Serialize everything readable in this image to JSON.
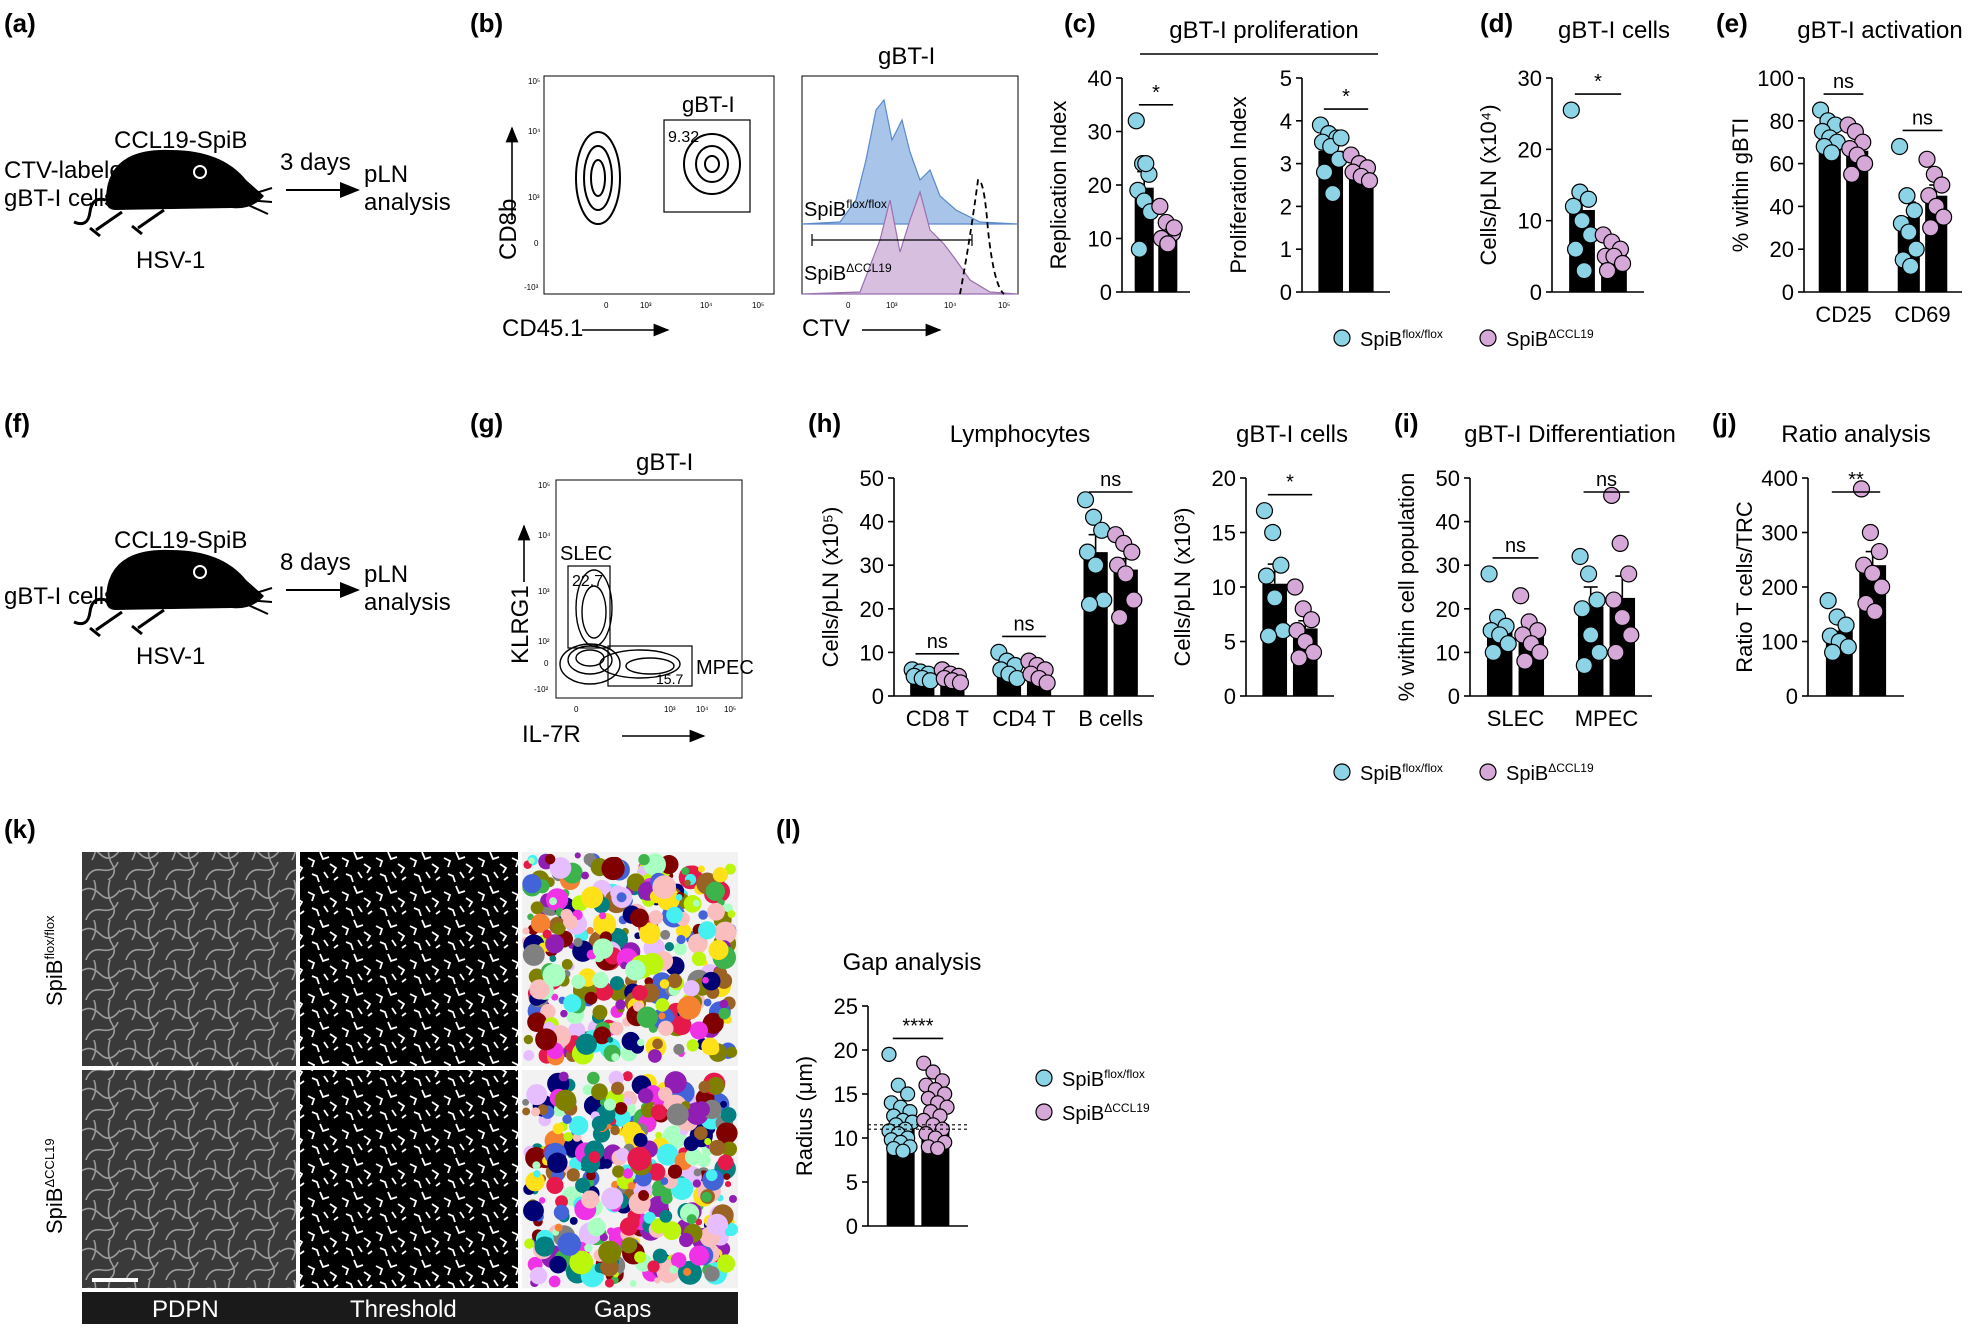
{
  "colors": {
    "flox": "#8dd3e6",
    "ko": "#d6a8d8",
    "bar": "#000000",
    "hist_flox": "#a8c4e8",
    "hist_ko": "#d7bfe0",
    "panel_label_bg": "#1a1a1a"
  },
  "legend": {
    "flox_base": "SpiB",
    "flox_sup": "flox/flox",
    "ko_base": "SpiB",
    "ko_sup": "ΔCCL19"
  },
  "panel_labels": [
    "(a)",
    "(b)",
    "(c)",
    "(d)",
    "(e)",
    "(f)",
    "(g)",
    "(h)",
    "(i)",
    "(j)",
    "(k)",
    "(l)"
  ],
  "schematic_a": {
    "mouse": "CCL19-SpiB",
    "cells_line1": "CTV-labeled",
    "cells_line2": "gBT-I cells",
    "virus": "HSV-1",
    "time": "3 days",
    "out_line1": "pLN",
    "out_line2": "analysis"
  },
  "schematic_f": {
    "mouse": "CCL19-SpiB",
    "cells": "gBT-I cells",
    "virus": "HSV-1",
    "time": "8 days",
    "out_line1": "pLN",
    "out_line2": "analysis"
  },
  "flow_b": {
    "ylabel": "CD8b",
    "xlabel": "CD45.1",
    "gate": "gBT-I",
    "gate_value": "9.32",
    "hist_title": "gBT-I",
    "hist_xlabel": "CTV",
    "yticks": [
      "10⁵",
      "10⁴",
      "10³",
      "0",
      "-10³"
    ],
    "xticks": [
      "0",
      "10³",
      "10⁴",
      "10⁵"
    ],
    "hist_xticks": [
      "0",
      "10³",
      "10⁴",
      "10⁵"
    ]
  },
  "flow_g": {
    "title": "gBT-I",
    "ylabel": "KLRG1",
    "xlabel": "IL-7R",
    "gate1": "SLEC",
    "gate1_value": "22.7",
    "gate2": "MPEC",
    "gate2_value": "15.7",
    "yticks": [
      "10⁵",
      "10⁴",
      "10³",
      "10²",
      "0",
      "-10²"
    ],
    "xticks": [
      "0",
      "10³",
      "10⁴",
      "10⁵"
    ]
  },
  "micro_k": {
    "col1": "PDPN",
    "col2": "Threshold",
    "col3": "Gaps",
    "row1_base": "SpiB",
    "row1_sup": "flox/flox",
    "row2_base": "SpiB",
    "row2_sup": "ΔCCL19"
  },
  "chart_data": [
    {
      "id": "c1",
      "panel": "(c)",
      "type": "bar",
      "title": "gBT-I proliferation",
      "xlabel": "",
      "ylabel": "Replication Index",
      "ylim": [
        0,
        40
      ],
      "yticks": [
        0,
        10,
        20,
        30,
        40
      ],
      "categories": [
        ""
      ],
      "series": [
        {
          "name": "SpiBflox/flox",
          "values": [
            19.5
          ],
          "sem": [
            3
          ],
          "points": [
            32,
            24,
            22,
            19,
            17,
            15,
            8,
            24
          ]
        },
        {
          "name": "SpiBΔCCL19",
          "values": [
            11
          ],
          "sem": [
            1.5
          ],
          "points": [
            16,
            13,
            11,
            10,
            9,
            12
          ]
        }
      ],
      "sig": [
        {
          "label": "*"
        }
      ]
    },
    {
      "id": "c2",
      "panel": "(c)",
      "type": "bar",
      "xlabel": "",
      "ylabel": "Proliferation Index",
      "ylim": [
        0,
        5
      ],
      "yticks": [
        0,
        1,
        2,
        3,
        4,
        5
      ],
      "categories": [
        ""
      ],
      "series": [
        {
          "name": "SpiBflox/flox",
          "values": [
            3.3
          ],
          "sem": [
            0.2
          ],
          "points": [
            3.9,
            3.7,
            3.6,
            3.5,
            3.4,
            3.1,
            2.8,
            2.3,
            3.6
          ]
        },
        {
          "name": "SpiBΔCCL19",
          "values": [
            2.8
          ],
          "sem": [
            0.1
          ],
          "points": [
            3.2,
            3.0,
            2.9,
            2.8,
            2.7,
            2.6
          ]
        }
      ],
      "sig": [
        {
          "label": "*"
        }
      ]
    },
    {
      "id": "d",
      "panel": "(d)",
      "type": "bar",
      "title": "gBT-I cells",
      "xlabel": "",
      "ylabel": "Cells/pLN (x10⁴)",
      "ylim": [
        0,
        30
      ],
      "yticks": [
        0,
        10,
        20,
        30
      ],
      "categories": [
        ""
      ],
      "series": [
        {
          "name": "SpiBflox/flox",
          "values": [
            11.5
          ],
          "sem": [
            2.2
          ],
          "points": [
            25.5,
            14,
            13,
            12,
            10,
            8,
            6,
            3
          ]
        },
        {
          "name": "SpiBΔCCL19",
          "values": [
            5.5
          ],
          "sem": [
            0.8
          ],
          "points": [
            8,
            7,
            6,
            5,
            5,
            4,
            3
          ]
        }
      ],
      "sig": [
        {
          "label": "*"
        }
      ]
    },
    {
      "id": "e",
      "panel": "(e)",
      "type": "bar",
      "title": "gBT-I activation",
      "xlabel": "",
      "ylabel": "% within gBTI",
      "ylim": [
        0,
        100
      ],
      "yticks": [
        0,
        20,
        40,
        60,
        80,
        100
      ],
      "categories": [
        "CD25",
        "CD69"
      ],
      "series": [
        {
          "name": "SpiBflox/flox",
          "values": [
            73,
            35
          ],
          "sem": [
            3,
            7
          ],
          "points": [
            [
              85,
              80,
              78,
              75,
              72,
              70,
              68,
              65
            ],
            [
              68,
              45,
              38,
              32,
              28,
              20,
              15,
              12
            ]
          ]
        },
        {
          "name": "SpiBΔCCL19",
          "values": [
            66,
            45
          ],
          "sem": [
            4,
            5
          ],
          "points": [
            [
              78,
              75,
              70,
              67,
              64,
              60,
              55
            ],
            [
              62,
              55,
              50,
              45,
              40,
              35,
              30
            ]
          ]
        }
      ],
      "sig": [
        {
          "label": "ns"
        },
        {
          "label": "ns"
        }
      ]
    },
    {
      "id": "h1",
      "panel": "(h)",
      "type": "bar",
      "title": "Lymphocytes",
      "xlabel": "",
      "ylabel": "Cells/pLN (x10⁵)",
      "ylim": [
        0,
        50
      ],
      "yticks": [
        0,
        10,
        20,
        30,
        40,
        50
      ],
      "categories": [
        "CD8 T",
        "CD4 T",
        "B cells"
      ],
      "series": [
        {
          "name": "SpiBflox/flox",
          "values": [
            4.5,
            6.5,
            33
          ],
          "sem": [
            0.5,
            1,
            4
          ],
          "points": [
            [
              6,
              5.5,
              5,
              4.5,
              4,
              3.5
            ],
            [
              10,
              8,
              7,
              6,
              5,
              4
            ],
            [
              45,
              41,
              38,
              33,
              30,
              22,
              21
            ]
          ]
        },
        {
          "name": "SpiBΔCCL19",
          "values": [
            4,
            5,
            29
          ],
          "sem": [
            0.4,
            0.6,
            2.5
          ],
          "points": [
            [
              6,
              5,
              4.5,
              4,
              3.5,
              3
            ],
            [
              8,
              7,
              6,
              5,
              4,
              3
            ],
            [
              37,
              35,
              33,
              30,
              28,
              22,
              18
            ]
          ]
        }
      ],
      "sig": [
        {
          "label": "ns"
        },
        {
          "label": "ns"
        },
        {
          "label": "ns"
        }
      ]
    },
    {
      "id": "h2",
      "panel": "(h)",
      "type": "bar",
      "title": "gBT-I cells",
      "xlabel": "",
      "ylabel": "Cells/pLN (x10³)",
      "ylim": [
        0,
        20
      ],
      "yticks": [
        0,
        5,
        10,
        15,
        20
      ],
      "categories": [
        ""
      ],
      "series": [
        {
          "name": "SpiBflox/flox",
          "values": [
            10.3
          ],
          "sem": [
            1.8
          ],
          "points": [
            17,
            15,
            12,
            11,
            9,
            6,
            5.5
          ]
        },
        {
          "name": "SpiBΔCCL19",
          "values": [
            6.2
          ],
          "sem": [
            0.7
          ],
          "points": [
            10,
            8,
            7,
            6,
            5,
            4,
            3.5
          ]
        }
      ],
      "sig": [
        {
          "label": "*"
        }
      ]
    },
    {
      "id": "i",
      "panel": "(i)",
      "type": "bar",
      "title": "gBT-I Differentiation",
      "xlabel": "",
      "ylabel": "% within cell population",
      "ylim": [
        0,
        50
      ],
      "yticks": [
        0,
        10,
        20,
        30,
        40,
        50
      ],
      "categories": [
        "SLEC",
        "MPEC"
      ],
      "series": [
        {
          "name": "SpiBflox/flox",
          "values": [
            15.5,
            20.5
          ],
          "sem": [
            2,
            4.5
          ],
          "points": [
            [
              28,
              18,
              16,
              15,
              14,
              12,
              10
            ],
            [
              32,
              28,
              22,
              20,
              14,
              10,
              7
            ]
          ]
        },
        {
          "name": "SpiBΔCCL19",
          "values": [
            14,
            22.5
          ],
          "sem": [
            1.5,
            5
          ],
          "points": [
            [
              23,
              17,
              15,
              14,
              12,
              10,
              8
            ],
            [
              46,
              35,
              28,
              22,
              18,
              14,
              10
            ]
          ]
        }
      ],
      "sig": [
        {
          "label": "ns"
        },
        {
          "label": "ns"
        }
      ]
    },
    {
      "id": "j",
      "panel": "(j)",
      "type": "bar",
      "title": "Ratio analysis",
      "xlabel": "",
      "ylabel": "Ratio T cells/TRC",
      "ylim": [
        0,
        400
      ],
      "yticks": [
        0,
        100,
        200,
        300,
        400
      ],
      "categories": [
        ""
      ],
      "series": [
        {
          "name": "SpiBflox/flox",
          "values": [
            120
          ],
          "sem": [
            15
          ],
          "points": [
            175,
            145,
            130,
            110,
            100,
            90,
            80
          ]
        },
        {
          "name": "SpiBΔCCL19",
          "values": [
            240
          ],
          "sem": [
            25
          ],
          "points": [
            380,
            300,
            265,
            240,
            225,
            200,
            170,
            155
          ]
        }
      ],
      "sig": [
        {
          "label": "**"
        }
      ]
    },
    {
      "id": "l",
      "panel": "(l)",
      "type": "bar",
      "title": "Gap analysis",
      "xlabel": "",
      "ylabel": "Radius (μm)",
      "ylim": [
        0,
        25
      ],
      "yticks": [
        0,
        5,
        10,
        15,
        20,
        25
      ],
      "categories": [
        ""
      ],
      "series": [
        {
          "name": "SpiBflox/flox",
          "values": [
            11
          ],
          "sem": [
            0.3
          ],
          "points": [
            19.5,
            16,
            15,
            14,
            13.5,
            13,
            12.5,
            12,
            11.8,
            11.5,
            11,
            10.8,
            10.5,
            10,
            9.8,
            9.5,
            9,
            8.8,
            8.5
          ]
        },
        {
          "name": "SpiBΔCCL19",
          "values": [
            11.5
          ],
          "sem": [
            0.3
          ],
          "points": [
            18.5,
            17.5,
            16.5,
            16,
            15.5,
            15,
            14.5,
            14,
            13.5,
            13,
            12.5,
            12,
            11.5,
            11,
            10.5,
            10,
            9.5,
            9,
            8.8
          ]
        }
      ],
      "sig": [
        {
          "label": "****"
        }
      ]
    }
  ]
}
